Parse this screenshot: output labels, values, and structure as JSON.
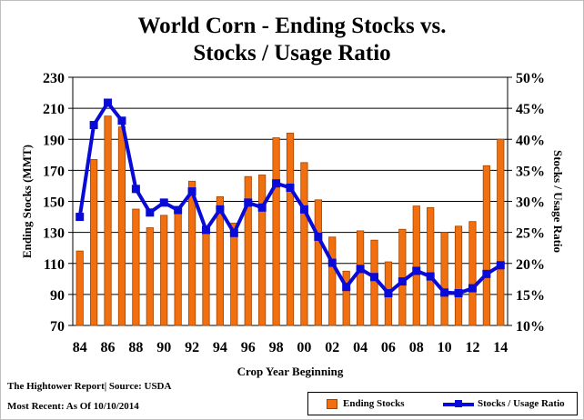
{
  "chart_data": {
    "type": "bar",
    "title": [
      "World Corn - Ending Stocks vs.",
      "Stocks / Usage Ratio"
    ],
    "xlabel": "Crop Year Beginning",
    "ylabel": "Ending Stocks (MMT)",
    "y2label": "Stocks / Usage Ratio",
    "ylim": [
      70,
      230
    ],
    "y2lim": [
      10,
      50
    ],
    "y_ticks": [
      "70",
      "90",
      "110",
      "130",
      "150",
      "170",
      "190",
      "210",
      "230"
    ],
    "y2_ticks": [
      "10%",
      "15%",
      "20%",
      "25%",
      "30%",
      "35%",
      "40%",
      "45%",
      "50%"
    ],
    "x_tick_labels": [
      "84",
      "86",
      "88",
      "90",
      "92",
      "94",
      "96",
      "98",
      "00",
      "02",
      "04",
      "06",
      "08",
      "10",
      "12",
      "14"
    ],
    "grid": "horizontal",
    "legend_position": "bottom-right",
    "colors": {
      "bars": "#f26f0f",
      "bar_edge": "#a34400",
      "line": "#0a0ad8"
    },
    "categories": [
      "84",
      "85",
      "86",
      "87",
      "88",
      "89",
      "90",
      "91",
      "92",
      "93",
      "94",
      "95",
      "96",
      "97",
      "98",
      "99",
      "00",
      "01",
      "02",
      "03",
      "04",
      "05",
      "06",
      "07",
      "08",
      "09",
      "10",
      "11",
      "12",
      "13",
      "14"
    ],
    "series": [
      {
        "name": "Ending Stocks",
        "axis": "left",
        "kind": "bar",
        "values": [
          118,
          177,
          205,
          198,
          145,
          133,
          141,
          143,
          163,
          132,
          153,
          136,
          166,
          167,
          191,
          194,
          175,
          151,
          127,
          105,
          131,
          125,
          111,
          132,
          147,
          146,
          130,
          134,
          137,
          173,
          190
        ]
      },
      {
        "name": "Stocks / Usage Ratio",
        "axis": "right",
        "kind": "line",
        "values": [
          27.5,
          42.3,
          45.9,
          43.0,
          32.0,
          28.2,
          29.8,
          28.6,
          31.6,
          25.4,
          28.7,
          24.9,
          29.8,
          29.0,
          32.9,
          32.2,
          28.7,
          24.3,
          20.1,
          16.2,
          19.1,
          17.8,
          15.2,
          17.1,
          18.8,
          17.9,
          15.3,
          15.2,
          16.0,
          18.3,
          19.7
        ]
      }
    ]
  },
  "footer": {
    "source": "The Hightower Report| Source: USDA",
    "recent": "Most Recent: As Of 10/10/2014"
  }
}
